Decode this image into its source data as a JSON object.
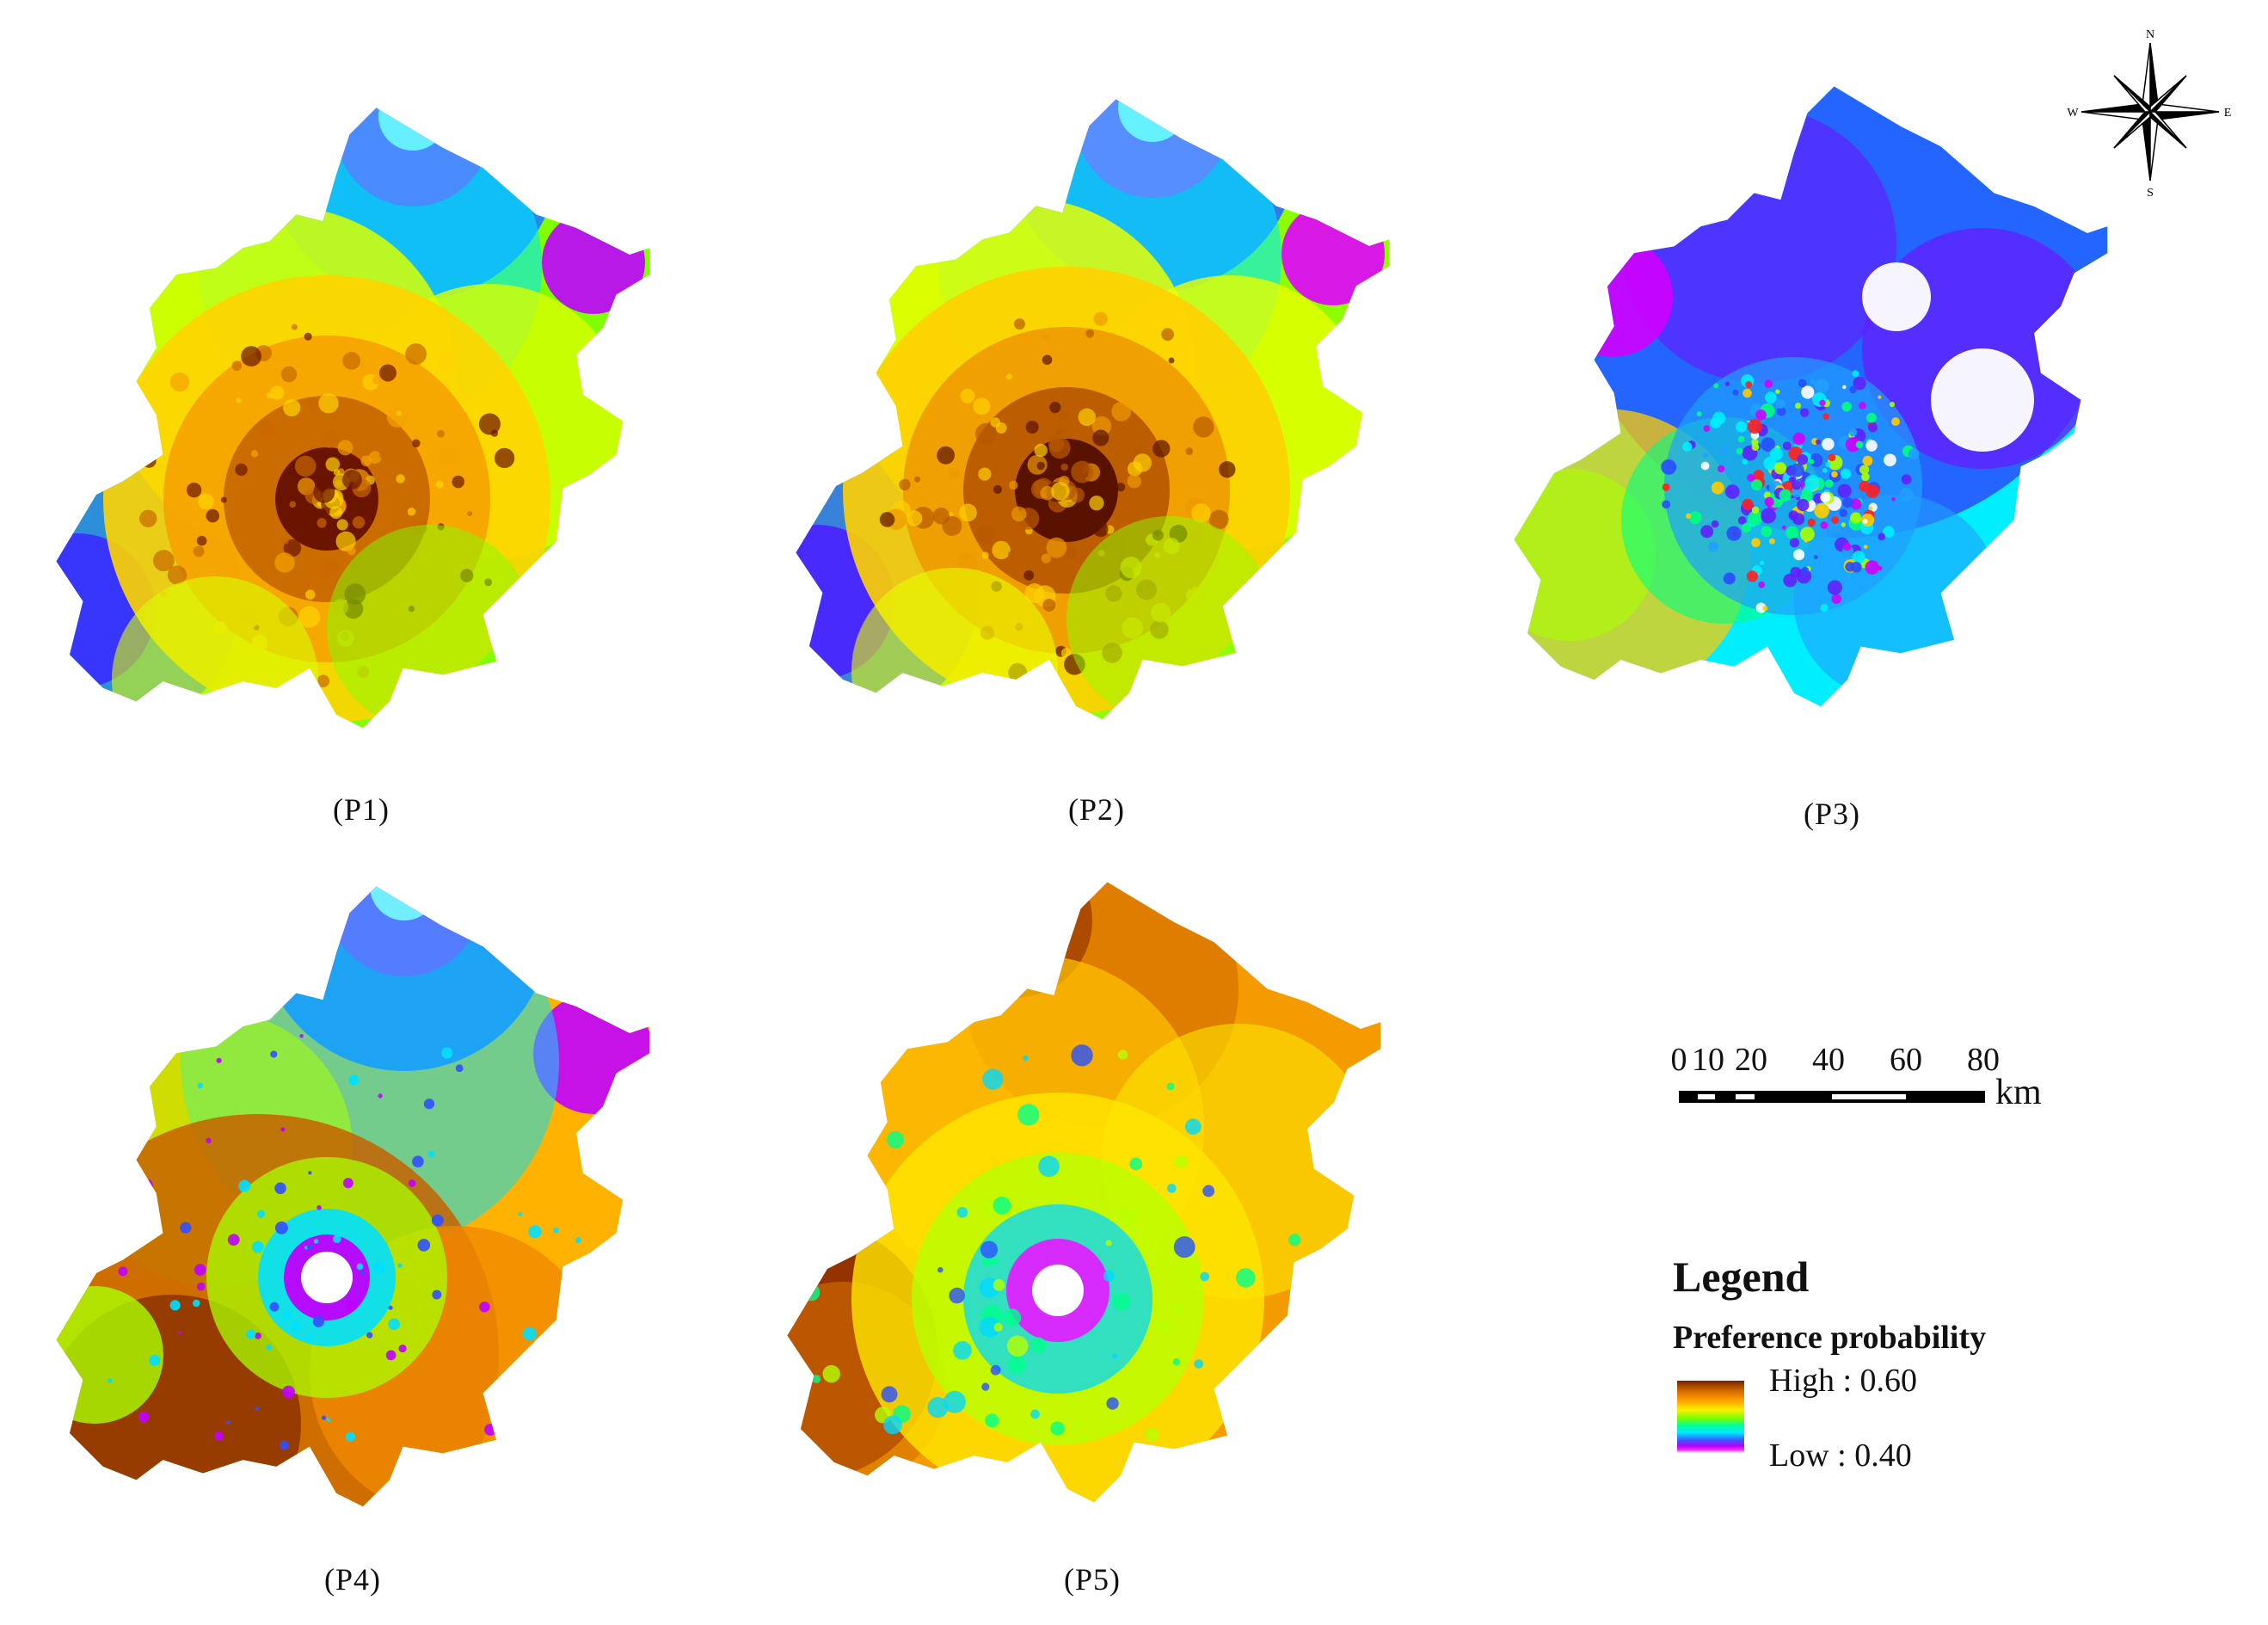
{
  "panels": [
    {
      "label": "(P1)",
      "pattern": "center-high",
      "colors": [
        "#6b1500",
        "#c86800",
        "#f5a300",
        "#ffd400",
        "#d9ff00",
        "#7fff00",
        "#00ff88",
        "#00e5ff",
        "#1e7bff",
        "#3a2cff",
        "#c000ff",
        "#ffffff"
      ]
    },
    {
      "label": "(P2)",
      "pattern": "center-high",
      "colors": [
        "#5a1200",
        "#b85a00",
        "#ee9a00",
        "#ffd000",
        "#e8ff00",
        "#8dff00",
        "#00ff7a",
        "#00e8ff",
        "#2a6cff",
        "#4a20ff",
        "#e000ff",
        "#ffffff"
      ]
    },
    {
      "label": "(P3)",
      "pattern": "north-low",
      "colors": [
        "#ff2020",
        "#ffcc00",
        "#aaff00",
        "#00ff80",
        "#00eeff",
        "#20a0ff",
        "#2a4cff",
        "#6020ff",
        "#d000ff",
        "#ffffff"
      ]
    },
    {
      "label": "(P4)",
      "pattern": "center-low",
      "colors": [
        "#8a3000",
        "#c66200",
        "#f08800",
        "#ffb300",
        "#ffe000",
        "#aaff00",
        "#00ff90",
        "#00e0ff",
        "#3050ff",
        "#c000ff",
        "#ffffff"
      ]
    },
    {
      "label": "(P5)",
      "pattern": "center-low-warm",
      "colors": [
        "#8a2800",
        "#d57000",
        "#f39b00",
        "#ffc400",
        "#ffe600",
        "#b6ff00",
        "#00ff8c",
        "#00d8ff",
        "#2a50ff",
        "#e020ff",
        "#ffffff"
      ]
    }
  ],
  "compass": {
    "north": "N",
    "south": "S",
    "east": "E",
    "west": "W"
  },
  "scale_bar": {
    "ticks": [
      "0",
      "10",
      "20",
      "40",
      "60",
      "80"
    ],
    "unit": "km"
  },
  "legend": {
    "title": "Legend",
    "subtitle": "Preference probability",
    "high_label": "High : 0.60",
    "low_label": "Low : 0.40",
    "ramp_colors": [
      "#7a2000",
      "#ff9900",
      "#ffee00",
      "#7cff00",
      "#00e8ff",
      "#3a5cff",
      "#ff2cff",
      "#ffffff"
    ]
  }
}
